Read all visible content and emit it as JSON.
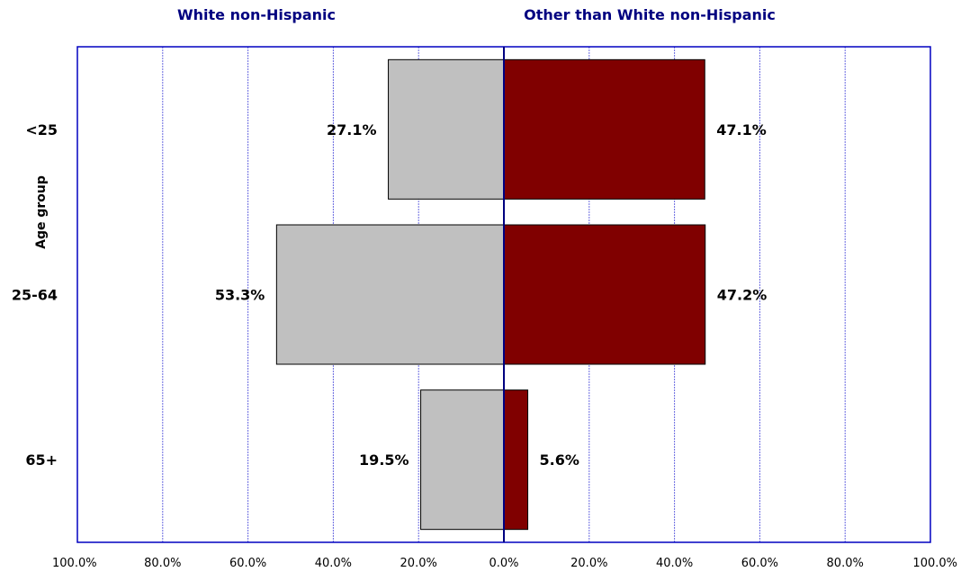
{
  "chart_data": {
    "type": "bar",
    "orientation": "horizontal-diverging",
    "categories": [
      "<25",
      "25-64",
      "65+"
    ],
    "series": [
      {
        "name": "White non-Hispanic",
        "side": "left",
        "values": [
          27.1,
          53.3,
          19.5
        ],
        "labels": [
          "27.1%",
          "53.3%",
          "19.5%"
        ],
        "color": "#c0c0c0"
      },
      {
        "name": "Other than White non-Hispanic",
        "side": "right",
        "values": [
          47.1,
          47.2,
          5.6
        ],
        "labels": [
          "47.1%",
          "47.2%",
          "5.6%"
        ],
        "color": "#800000"
      }
    ],
    "ylabel": "Age group",
    "xlim": [
      -100,
      100
    ],
    "x_tick_labels": [
      "100.0%",
      "80.0%",
      "60.0%",
      "40.0%",
      "20.0%",
      "0.0%",
      "20.0%",
      "40.0%",
      "60.0%",
      "80.0%",
      "100.0%"
    ],
    "grid": true,
    "colors": {
      "frame": "#0000c0",
      "grid": "#6a6ae0",
      "title": "#000080",
      "zero_tick": "#c8c8c8"
    }
  }
}
